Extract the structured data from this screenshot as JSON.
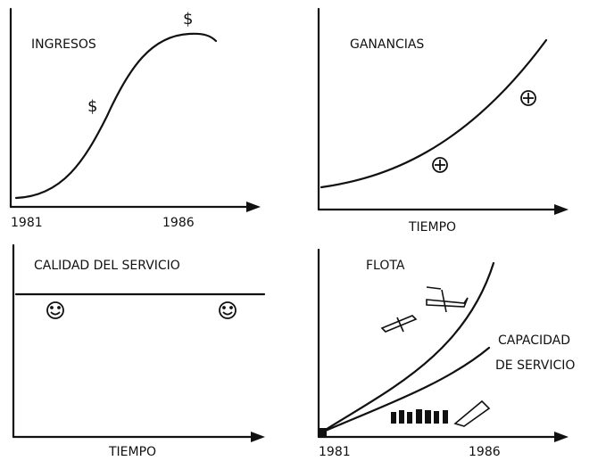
{
  "panels": [
    {
      "title": "INGRESOS",
      "symbols": [
        "$",
        "$"
      ],
      "x_labels": [
        "1981",
        "1986"
      ]
    },
    {
      "title": "GANANCIAS",
      "x_label": "TIEMPO"
    },
    {
      "title": "CALIDAD DEL SERVICIO",
      "x_label": "TIEMPO"
    },
    {
      "labels": [
        "FLOTA",
        "CAPACIDAD",
        "DE SERVICIO"
      ],
      "x_labels": [
        "1981",
        "1986"
      ]
    }
  ]
}
